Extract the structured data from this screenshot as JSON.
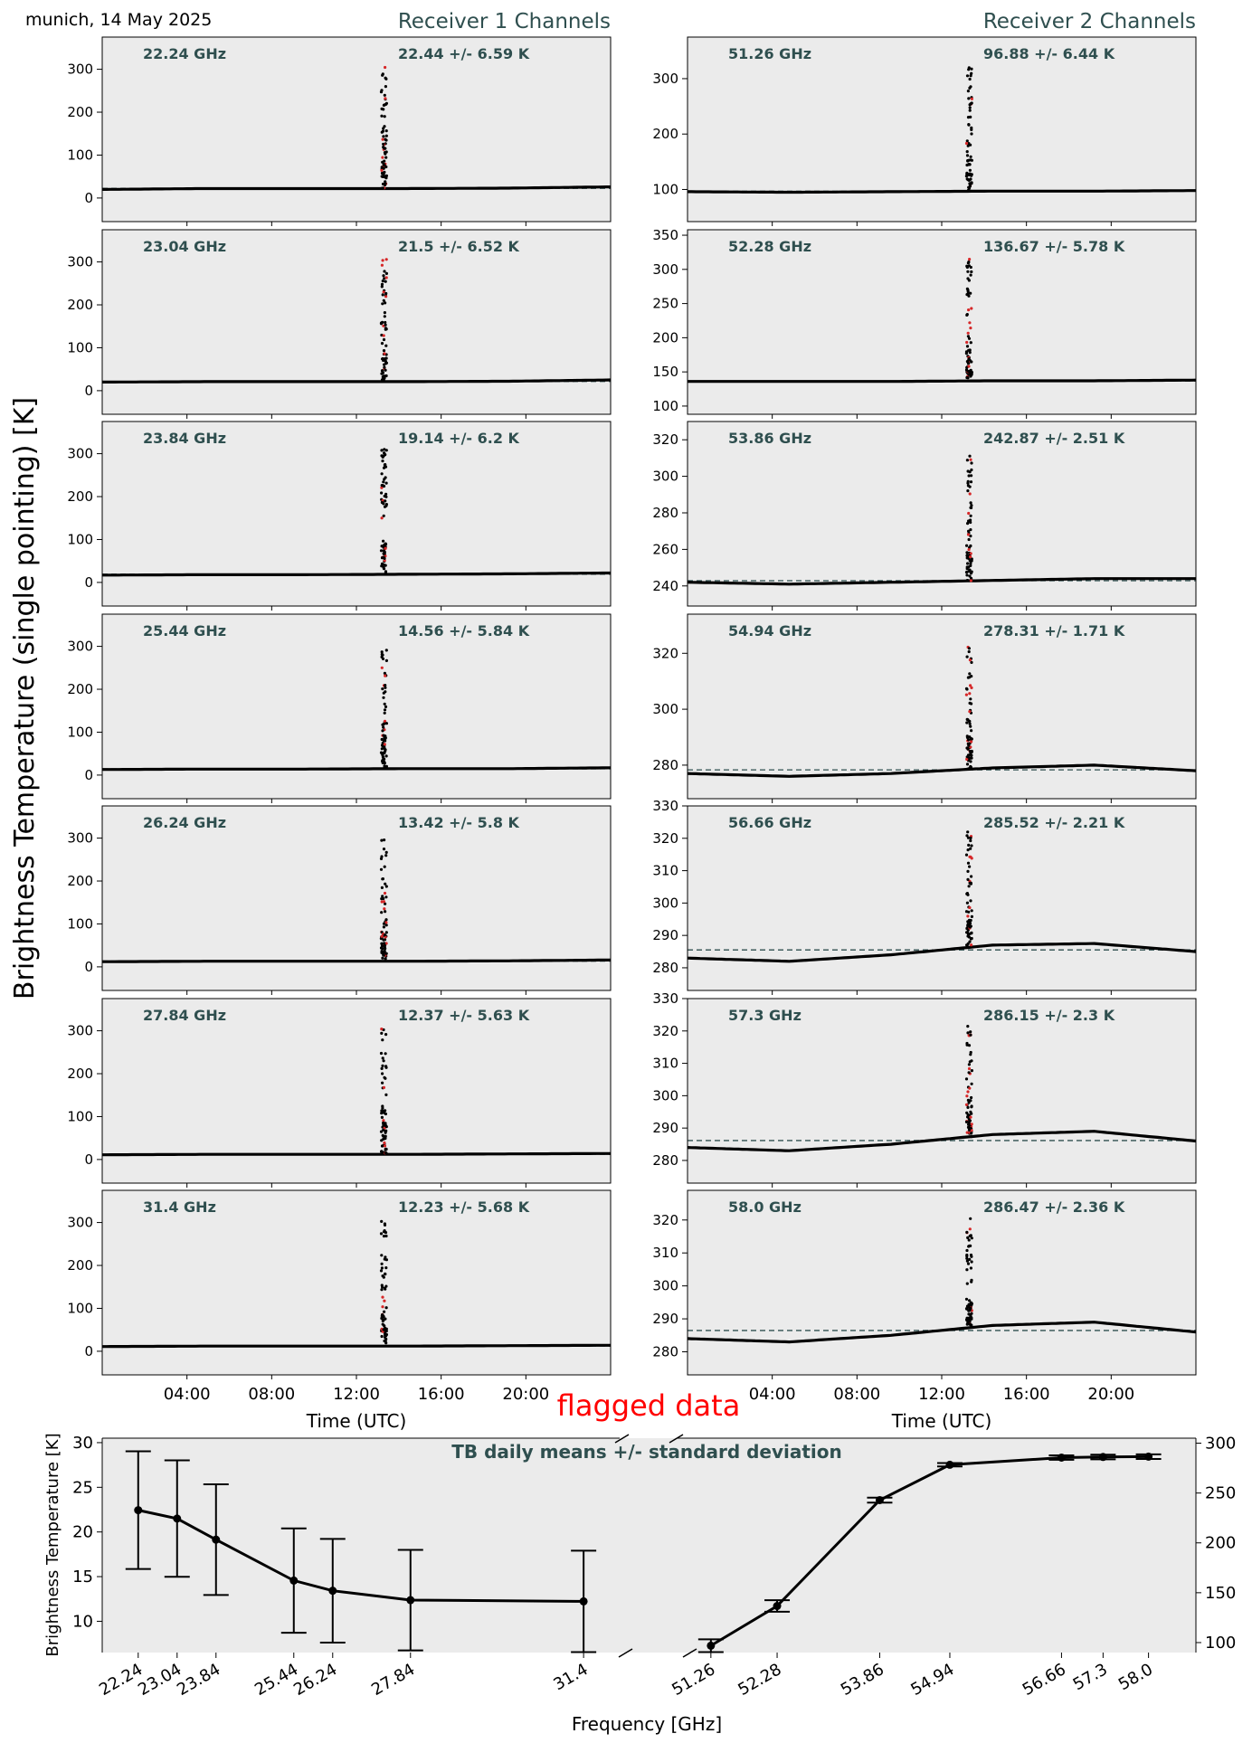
{
  "header": {
    "location_date": "munich, 14 May 2025",
    "receiver1_title": "Receiver 1 Channels",
    "receiver2_title": "Receiver 2 Channels",
    "ylabel": "Brightness Temperature (single pointing) [K]"
  },
  "colors": {
    "axes_bg": "#ebebeb",
    "label_color": "#2f4f4f",
    "series_color": "#000000",
    "flag_color": "#d62728"
  },
  "chart_data": [
    {
      "type": "scatter",
      "group": "Receiver 1 Channels",
      "xlabel": "Time (UTC)",
      "x_tick_labels": [
        "04:00",
        "08:00",
        "12:00",
        "16:00",
        "20:00"
      ],
      "x_tick_hours": [
        4,
        8,
        12,
        16,
        20
      ],
      "xlim_hours": [
        0,
        24
      ],
      "spike_hour": 13.3,
      "panels": [
        {
          "freq": "22.24 GHz",
          "stat": "22.44 +/- 6.59 K",
          "mean": 22.44,
          "ylim": [
            -55,
            375
          ],
          "yticks": [
            0,
            100,
            200,
            300
          ],
          "base": [
            20,
            22,
            22,
            22,
            23,
            26
          ]
        },
        {
          "freq": "23.04 GHz",
          "stat": "21.5 +/- 6.52 K",
          "mean": 21.5,
          "ylim": [
            -55,
            375
          ],
          "yticks": [
            0,
            100,
            200,
            300
          ],
          "base": [
            20,
            21,
            21,
            21,
            22,
            25
          ]
        },
        {
          "freq": "23.84 GHz",
          "stat": "19.14 +/- 6.2 K",
          "mean": 19.14,
          "ylim": [
            -55,
            375
          ],
          "yticks": [
            0,
            100,
            200,
            300
          ],
          "base": [
            17,
            18,
            18,
            19,
            20,
            22
          ]
        },
        {
          "freq": "25.44 GHz",
          "stat": "14.56 +/- 5.84 K",
          "mean": 14.56,
          "ylim": [
            -55,
            375
          ],
          "yticks": [
            0,
            100,
            200,
            300
          ],
          "base": [
            13,
            14,
            14,
            15,
            15,
            17
          ]
        },
        {
          "freq": "26.24 GHz",
          "stat": "13.42 +/- 5.8 K",
          "mean": 13.42,
          "ylim": [
            -55,
            375
          ],
          "yticks": [
            0,
            100,
            200,
            300
          ],
          "base": [
            12,
            13,
            13,
            13,
            14,
            16
          ]
        },
        {
          "freq": "27.84 GHz",
          "stat": "12.37 +/- 5.63 K",
          "mean": 12.37,
          "ylim": [
            -55,
            375
          ],
          "yticks": [
            0,
            100,
            200,
            300
          ],
          "base": [
            11,
            12,
            12,
            12,
            13,
            14
          ]
        },
        {
          "freq": "31.4 GHz",
          "stat": "12.23 +/- 5.68 K",
          "mean": 12.23,
          "ylim": [
            -55,
            375
          ],
          "yticks": [
            0,
            100,
            200,
            300
          ],
          "base": [
            11,
            12,
            12,
            12,
            13,
            14
          ]
        }
      ]
    },
    {
      "type": "scatter",
      "group": "Receiver 2 Channels",
      "xlabel": "Time (UTC)",
      "x_tick_labels": [
        "04:00",
        "08:00",
        "12:00",
        "16:00",
        "20:00"
      ],
      "x_tick_hours": [
        4,
        8,
        12,
        16,
        20
      ],
      "xlim_hours": [
        0,
        24
      ],
      "spike_hour": 13.3,
      "panels": [
        {
          "freq": "51.26 GHz",
          "stat": "96.88 +/- 6.44 K",
          "mean": 96.88,
          "ylim": [
            42,
            375
          ],
          "yticks": [
            100,
            200,
            300
          ],
          "base": [
            96,
            95,
            96,
            97,
            97,
            98
          ]
        },
        {
          "freq": "52.28 GHz",
          "stat": "136.67 +/- 5.78 K",
          "mean": 136.67,
          "ylim": [
            88,
            358
          ],
          "yticks": [
            100,
            150,
            200,
            250,
            300,
            350
          ],
          "base": [
            136,
            136,
            136,
            137,
            137,
            138
          ]
        },
        {
          "freq": "53.86 GHz",
          "stat": "242.87 +/- 2.51 K",
          "mean": 242.87,
          "ylim": [
            229,
            330
          ],
          "yticks": [
            240,
            260,
            280,
            300,
            320
          ],
          "base": [
            242,
            241,
            242,
            243,
            244,
            244
          ]
        },
        {
          "freq": "54.94 GHz",
          "stat": "278.31 +/- 1.71 K",
          "mean": 278.31,
          "ylim": [
            268,
            334
          ],
          "yticks": [
            280,
            300,
            320
          ],
          "base": [
            277,
            276,
            277,
            279,
            280,
            278
          ]
        },
        {
          "freq": "56.66 GHz",
          "stat": "285.52 +/- 2.21 K",
          "mean": 285.52,
          "ylim": [
            273,
            330
          ],
          "yticks": [
            280,
            290,
            300,
            310,
            320,
            330
          ],
          "base": [
            283,
            282,
            284,
            287,
            287.5,
            285
          ]
        },
        {
          "freq": "57.3 GHz",
          "stat": "286.15 +/- 2.3 K",
          "mean": 286.15,
          "ylim": [
            273,
            330
          ],
          "yticks": [
            280,
            290,
            300,
            310,
            320,
            330
          ],
          "base": [
            284,
            283,
            285,
            288,
            289,
            286
          ]
        },
        {
          "freq": "58.0 GHz",
          "stat": "286.47 +/- 2.36 K",
          "mean": 286.47,
          "ylim": [
            273,
            329
          ],
          "yticks": [
            280,
            290,
            300,
            310,
            320
          ],
          "base": [
            284,
            283,
            285,
            288,
            289,
            286
          ]
        }
      ]
    },
    {
      "type": "line",
      "title": "TB daily means +/- standard deviation",
      "xlabel": "Frequency [GHz]",
      "ylabel": "Brightness Temperature [K]",
      "annotation": "flagged data",
      "left": {
        "x": [
          22.24,
          23.04,
          23.84,
          25.44,
          26.24,
          27.84,
          31.4
        ],
        "tick_labels": [
          "22.24",
          "23.04",
          "23.84",
          "25.44",
          "26.24",
          "27.84",
          "31.4"
        ],
        "mean": [
          22.44,
          21.5,
          19.14,
          14.56,
          13.42,
          12.37,
          12.23
        ],
        "std": [
          6.59,
          6.52,
          6.2,
          5.84,
          5.8,
          5.63,
          5.68
        ],
        "ylim": [
          6.5,
          30.5
        ],
        "yticks": [
          10,
          15,
          20,
          25,
          30
        ]
      },
      "right": {
        "x": [
          51.26,
          52.28,
          53.86,
          54.94,
          56.66,
          57.3,
          58.0
        ],
        "tick_labels": [
          "51.26",
          "52.28",
          "53.86",
          "54.94",
          "56.66",
          "57.3",
          "58.0"
        ],
        "mean": [
          96.88,
          136.67,
          242.87,
          278.31,
          285.52,
          286.15,
          286.47
        ],
        "std": [
          6.44,
          5.78,
          2.51,
          1.71,
          2.21,
          2.3,
          2.36
        ],
        "ylim": [
          90,
          305
        ],
        "yticks": [
          100,
          150,
          200,
          250,
          300
        ]
      }
    }
  ]
}
